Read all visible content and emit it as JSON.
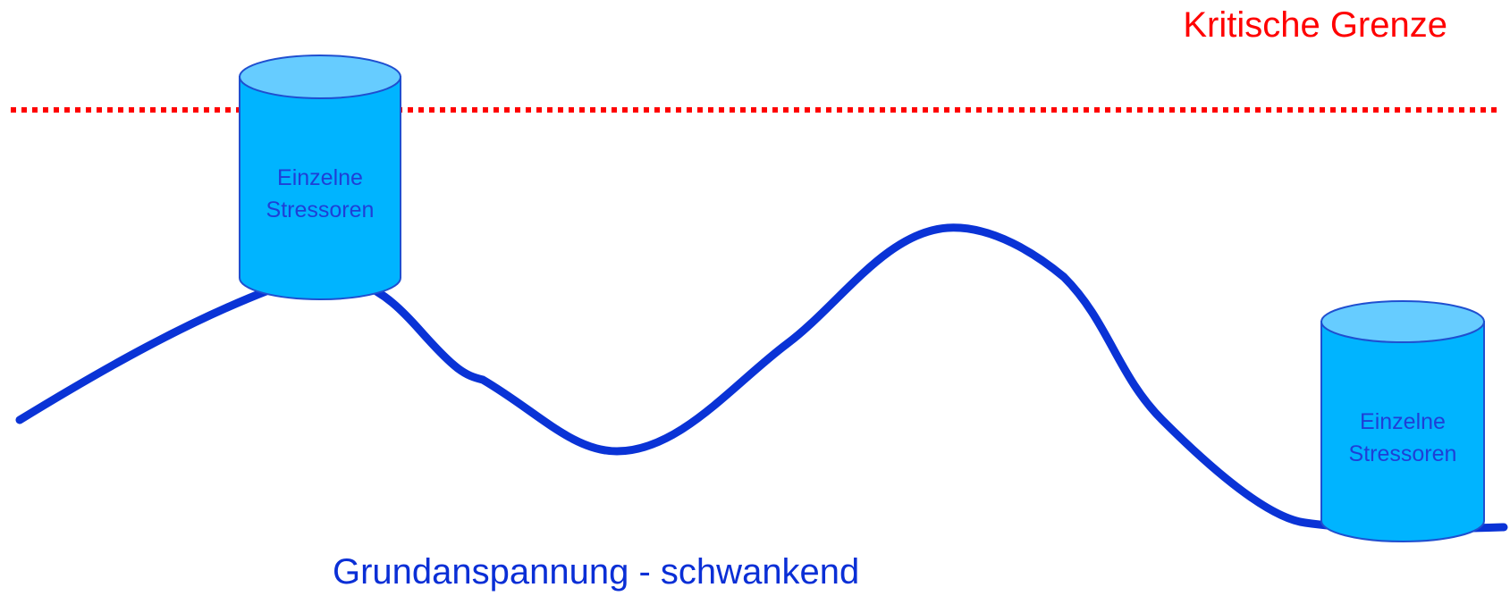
{
  "critical_limit": {
    "label": "Kritische Grenze",
    "color": "#ff0000"
  },
  "baseline": {
    "label": "Grundanspannung - schwankend",
    "color": "#0a2fd6"
  },
  "stressors": [
    {
      "line1": "Einzelne",
      "line2": "Stressoren"
    },
    {
      "line1": "Einzelne",
      "line2": "Stressoren"
    }
  ],
  "colors": {
    "cylinder_body": "#00b4ff",
    "cylinder_top": "#66ccff",
    "cylinder_outline": "#1f4fd0",
    "curve": "#0a33d6"
  }
}
